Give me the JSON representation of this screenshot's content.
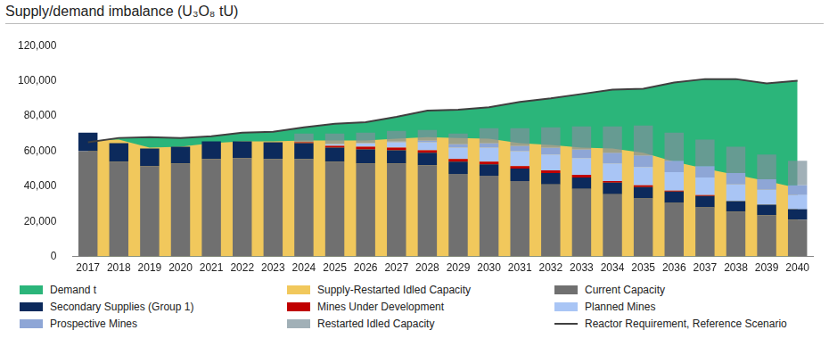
{
  "chart_data": {
    "type": "bar",
    "title": "Supply/demand imbalance (U₃O₈ tU)",
    "categories": [
      "2017",
      "2018",
      "2019",
      "2020",
      "2021",
      "2022",
      "2023",
      "2024",
      "2025",
      "2026",
      "2027",
      "2028",
      "2029",
      "2030",
      "2031",
      "2032",
      "2033",
      "2034",
      "2035",
      "2036",
      "2037",
      "2038",
      "2039",
      "2040"
    ],
    "stacked": true,
    "grid": false,
    "legend": "bottom",
    "ylim": [
      0,
      120000
    ],
    "yticks": [
      0,
      {
        "value": 20000,
        "label": "20,000"
      },
      {
        "value": 40000,
        "label": "40,000"
      },
      {
        "value": 60000,
        "label": "60,000"
      },
      {
        "value": 80000,
        "label": "80,000"
      },
      {
        "value": 100000,
        "label": "100,000"
      },
      {
        "value": 120000,
        "label": "120,000"
      }
    ],
    "series": [
      {
        "name": "Demand t",
        "type": "area",
        "color": "#2bb57a",
        "values": [
          65000,
          67500,
          68000,
          67500,
          68500,
          70500,
          71000,
          73500,
          75500,
          76500,
          79500,
          83000,
          83500,
          85000,
          88000,
          90000,
          92500,
          95000,
          95500,
          99000,
          101000,
          101000,
          98500,
          100000
        ]
      },
      {
        "name": "Supply-Restarted Idled Capacity",
        "type": "area",
        "color": "#f1c85c",
        "values": [
          66000,
          66500,
          62000,
          62500,
          64500,
          65500,
          65500,
          66000,
          66000,
          66000,
          67000,
          68000,
          67500,
          67000,
          64500,
          63500,
          62000,
          61500,
          59000,
          54000,
          50000,
          46500,
          43000,
          39000
        ]
      },
      {
        "name": "Current Capacity",
        "type": "bar",
        "color": "#707070",
        "values": [
          60000,
          54000,
          51500,
          53000,
          55500,
          56000,
          55500,
          55500,
          54000,
          53000,
          53000,
          52000,
          47000,
          46000,
          43000,
          41000,
          38500,
          35500,
          33000,
          30500,
          28000,
          25500,
          23500,
          21000
        ]
      },
      {
        "name": "Secondary Supplies (Group 1)",
        "type": "bar",
        "color": "#0c2a5c",
        "values": [
          10500,
          10500,
          10000,
          9500,
          10000,
          9500,
          9500,
          9000,
          8000,
          8000,
          7500,
          7000,
          7000,
          6500,
          7000,
          6500,
          6500,
          6500,
          6500,
          6500,
          6500,
          6000,
          6000,
          6000
        ]
      },
      {
        "name": "Mines Under Development",
        "type": "bar",
        "color": "#c00000",
        "values": [
          0,
          0,
          0,
          0,
          0,
          0,
          0,
          500,
          1000,
          1500,
          1500,
          1500,
          1500,
          1500,
          1500,
          1500,
          1500,
          1000,
          1000,
          500,
          500,
          0,
          0,
          0
        ]
      },
      {
        "name": "Planned Mines",
        "type": "bar",
        "color": "#a9c5f5",
        "values": [
          0,
          0,
          0,
          0,
          0,
          0,
          0,
          0,
          1000,
          2000,
          3000,
          4500,
          6500,
          8000,
          8500,
          9000,
          9500,
          10000,
          10500,
          10500,
          10000,
          9500,
          8500,
          8000
        ]
      },
      {
        "name": "Prospective Mines",
        "type": "bar",
        "color": "#8ea6d6",
        "values": [
          0,
          0,
          0,
          0,
          0,
          0,
          0,
          0,
          0,
          0,
          500,
          1000,
          2000,
          2500,
          3000,
          4000,
          5000,
          6000,
          6500,
          6500,
          6500,
          6500,
          6000,
          5500
        ]
      },
      {
        "name": "Restarted Idled Capacity",
        "type": "bar",
        "color": "rgba(125,145,155,0.72)",
        "values": [
          0,
          0,
          0,
          0,
          0,
          0,
          0,
          5000,
          6000,
          6000,
          6000,
          6000,
          6000,
          8500,
          10000,
          11500,
          13000,
          15000,
          17000,
          16000,
          15000,
          15000,
          14000,
          14000
        ]
      },
      {
        "name": "Reactor Requirement, Reference Scenario",
        "type": "line",
        "color": "#404040",
        "values": [
          65000,
          67500,
          68000,
          67500,
          68500,
          70500,
          71000,
          73500,
          75500,
          76500,
          79500,
          83000,
          83500,
          85000,
          88000,
          90000,
          92500,
          95000,
          95500,
          99000,
          101000,
          101000,
          98500,
          100000
        ]
      }
    ]
  }
}
